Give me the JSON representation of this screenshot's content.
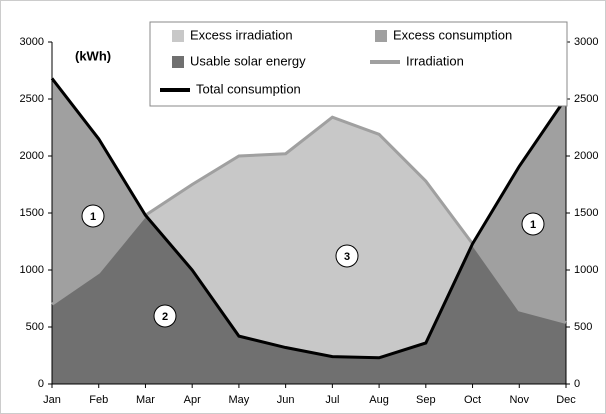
{
  "chart_data": {
    "type": "area",
    "unit_label": "(kWh)",
    "categories": [
      "Jan",
      "Feb",
      "Mar",
      "Apr",
      "May",
      "Jun",
      "Jul",
      "Aug",
      "Sep",
      "Oct",
      "Nov",
      "Dec"
    ],
    "series": [
      {
        "name": "Irradiation",
        "color": "#a0a0a0",
        "values": [
          700,
          980,
          1480,
          1750,
          2000,
          2020,
          2340,
          2190,
          1780,
          1230,
          650,
          540
        ]
      },
      {
        "name": "Total consumption",
        "color": "#000000",
        "values": [
          2680,
          2150,
          1480,
          1000,
          420,
          320,
          240,
          230,
          360,
          1230,
          1910,
          2510
        ]
      }
    ],
    "areas": [
      {
        "name": "Excess irradiation",
        "color": "#c8c8c8"
      },
      {
        "name": "Excess consumption",
        "color": "#a0a0a0"
      },
      {
        "name": "Usable solar energy",
        "color": "#707070"
      }
    ],
    "annotations": [
      "1",
      "2",
      "3",
      "1"
    ],
    "ylim": [
      0,
      3000
    ],
    "yticks": [
      0,
      500,
      1000,
      1500,
      2000,
      2500,
      3000
    ],
    "y2lim": [
      0,
      3000
    ],
    "y2ticks": [
      0,
      500,
      1000,
      1500,
      2000,
      2500,
      3000
    ]
  }
}
